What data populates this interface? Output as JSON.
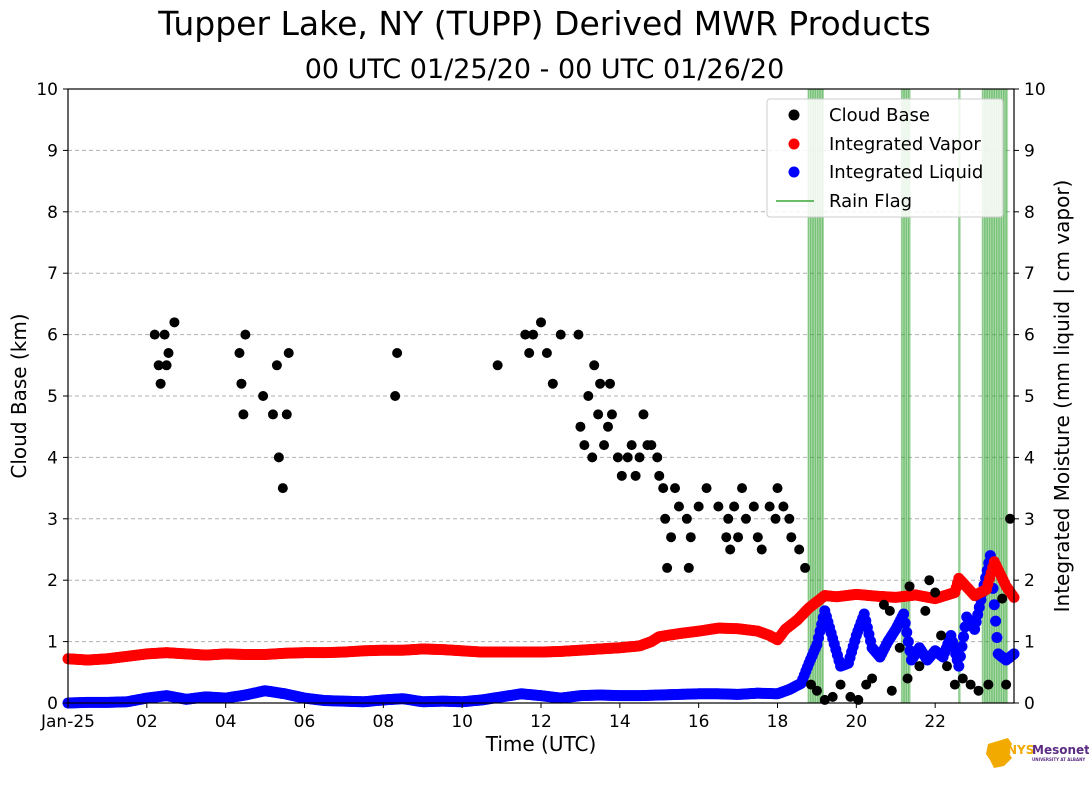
{
  "chart_data": {
    "type": "scatter",
    "title": "Tupper Lake, NY (TUPP) Derived MWR Products",
    "subtitle": "00 UTC 01/25/20 - 00 UTC 01/26/20",
    "xlabel": "Time (UTC)",
    "ylabel_left": "Cloud Base (km)",
    "ylabel_right": "Integrated Moisture (mm liquid | cm vapor)",
    "xlim": [
      0,
      24
    ],
    "ylim_left": [
      0,
      10
    ],
    "ylim_right": [
      0,
      10
    ],
    "x_ticks": [
      {
        "value": 0,
        "label": "Jan-25"
      },
      {
        "value": 2,
        "label": "02"
      },
      {
        "value": 4,
        "label": "04"
      },
      {
        "value": 6,
        "label": "06"
      },
      {
        "value": 8,
        "label": "08"
      },
      {
        "value": 10,
        "label": "10"
      },
      {
        "value": 12,
        "label": "12"
      },
      {
        "value": 14,
        "label": "14"
      },
      {
        "value": 16,
        "label": "16"
      },
      {
        "value": 18,
        "label": "18"
      },
      {
        "value": 20,
        "label": "20"
      },
      {
        "value": 22,
        "label": "22"
      }
    ],
    "y_ticks": [
      0,
      1,
      2,
      3,
      4,
      5,
      6,
      7,
      8,
      9,
      10
    ],
    "grid": "horizontal dashed",
    "legend_position": "top-right",
    "colors": {
      "cloud_base": "#000000",
      "integrated_vapor": "#ff0000",
      "integrated_liquid": "#0000ff",
      "rain_flag": "#2ca02c"
    },
    "series": [
      {
        "name": "Cloud Base",
        "color": "#000000",
        "points": [
          [
            2.2,
            6.0
          ],
          [
            2.3,
            5.5
          ],
          [
            2.35,
            5.2
          ],
          [
            2.45,
            6.0
          ],
          [
            2.5,
            5.5
          ],
          [
            2.55,
            5.7
          ],
          [
            2.7,
            6.2
          ],
          [
            4.35,
            5.7
          ],
          [
            4.4,
            5.2
          ],
          [
            4.45,
            4.7
          ],
          [
            4.5,
            6.0
          ],
          [
            4.95,
            5.0
          ],
          [
            5.2,
            4.7
          ],
          [
            5.3,
            5.5
          ],
          [
            5.35,
            4.0
          ],
          [
            5.45,
            3.5
          ],
          [
            5.55,
            4.7
          ],
          [
            5.6,
            5.7
          ],
          [
            8.3,
            5.0
          ],
          [
            8.35,
            5.7
          ],
          [
            10.9,
            5.5
          ],
          [
            11.6,
            6.0
          ],
          [
            11.7,
            5.7
          ],
          [
            11.8,
            6.0
          ],
          [
            12.0,
            6.2
          ],
          [
            12.15,
            5.7
          ],
          [
            12.3,
            5.2
          ],
          [
            12.5,
            6.0
          ],
          [
            12.95,
            6.0
          ],
          [
            13.0,
            4.5
          ],
          [
            13.1,
            4.2
          ],
          [
            13.2,
            5.0
          ],
          [
            13.3,
            4.0
          ],
          [
            13.35,
            5.5
          ],
          [
            13.45,
            4.7
          ],
          [
            13.5,
            5.2
          ],
          [
            13.6,
            4.2
          ],
          [
            13.7,
            4.5
          ],
          [
            13.75,
            5.2
          ],
          [
            13.8,
            4.7
          ],
          [
            13.95,
            4.0
          ],
          [
            14.05,
            3.7
          ],
          [
            14.2,
            4.0
          ],
          [
            14.3,
            4.2
          ],
          [
            14.4,
            3.7
          ],
          [
            14.5,
            4.0
          ],
          [
            14.6,
            4.7
          ],
          [
            14.7,
            4.2
          ],
          [
            14.8,
            4.2
          ],
          [
            14.95,
            4.0
          ],
          [
            15.0,
            3.7
          ],
          [
            15.1,
            3.5
          ],
          [
            15.15,
            3.0
          ],
          [
            15.2,
            2.2
          ],
          [
            15.3,
            2.7
          ],
          [
            15.4,
            3.5
          ],
          [
            15.5,
            3.2
          ],
          [
            15.7,
            3.0
          ],
          [
            15.75,
            2.2
          ],
          [
            15.8,
            2.7
          ],
          [
            16.0,
            3.2
          ],
          [
            16.2,
            3.5
          ],
          [
            16.5,
            3.2
          ],
          [
            16.7,
            2.7
          ],
          [
            16.75,
            3.0
          ],
          [
            16.8,
            2.5
          ],
          [
            16.9,
            3.2
          ],
          [
            17.0,
            2.7
          ],
          [
            17.1,
            3.5
          ],
          [
            17.2,
            3.0
          ],
          [
            17.4,
            3.2
          ],
          [
            17.5,
            2.7
          ],
          [
            17.6,
            2.5
          ],
          [
            17.8,
            3.2
          ],
          [
            17.95,
            3.0
          ],
          [
            18.0,
            3.5
          ],
          [
            18.15,
            3.2
          ],
          [
            18.3,
            3.0
          ],
          [
            18.35,
            2.7
          ],
          [
            18.55,
            2.5
          ],
          [
            18.7,
            2.2
          ],
          [
            18.85,
            0.3
          ],
          [
            19.0,
            0.2
          ],
          [
            19.2,
            0.05
          ],
          [
            19.4,
            0.1
          ],
          [
            19.6,
            0.3
          ],
          [
            19.85,
            0.1
          ],
          [
            20.05,
            0.05
          ],
          [
            20.25,
            0.3
          ],
          [
            20.4,
            0.4
          ],
          [
            20.7,
            1.6
          ],
          [
            20.85,
            1.5
          ],
          [
            20.9,
            0.2
          ],
          [
            21.1,
            0.9
          ],
          [
            21.3,
            0.4
          ],
          [
            21.35,
            1.9
          ],
          [
            21.6,
            0.6
          ],
          [
            21.75,
            1.5
          ],
          [
            21.85,
            2.0
          ],
          [
            22.0,
            1.8
          ],
          [
            22.15,
            1.1
          ],
          [
            22.3,
            0.6
          ],
          [
            22.5,
            0.3
          ],
          [
            22.7,
            0.4
          ],
          [
            22.9,
            0.3
          ],
          [
            23.1,
            0.2
          ],
          [
            23.35,
            0.3
          ],
          [
            23.7,
            1.7
          ],
          [
            23.8,
            0.3
          ],
          [
            23.9,
            3.0
          ]
        ]
      },
      {
        "name": "Integrated Vapor",
        "color": "#ff0000",
        "points": [
          [
            0.0,
            0.72
          ],
          [
            0.5,
            0.7
          ],
          [
            1.0,
            0.72
          ],
          [
            1.5,
            0.76
          ],
          [
            2.0,
            0.8
          ],
          [
            2.5,
            0.82
          ],
          [
            3.0,
            0.8
          ],
          [
            3.5,
            0.78
          ],
          [
            4.0,
            0.8
          ],
          [
            4.5,
            0.79
          ],
          [
            5.0,
            0.79
          ],
          [
            5.5,
            0.81
          ],
          [
            6.0,
            0.82
          ],
          [
            6.5,
            0.82
          ],
          [
            7.0,
            0.83
          ],
          [
            7.5,
            0.85
          ],
          [
            8.0,
            0.86
          ],
          [
            8.5,
            0.86
          ],
          [
            9.0,
            0.88
          ],
          [
            9.5,
            0.87
          ],
          [
            10.0,
            0.85
          ],
          [
            10.5,
            0.83
          ],
          [
            11.0,
            0.83
          ],
          [
            11.5,
            0.83
          ],
          [
            12.0,
            0.83
          ],
          [
            12.5,
            0.84
          ],
          [
            13.0,
            0.86
          ],
          [
            13.5,
            0.88
          ],
          [
            14.0,
            0.9
          ],
          [
            14.5,
            0.93
          ],
          [
            14.8,
            1.0
          ],
          [
            15.0,
            1.08
          ],
          [
            15.5,
            1.13
          ],
          [
            16.0,
            1.17
          ],
          [
            16.5,
            1.22
          ],
          [
            17.0,
            1.21
          ],
          [
            17.5,
            1.17
          ],
          [
            17.8,
            1.1
          ],
          [
            18.0,
            1.03
          ],
          [
            18.2,
            1.2
          ],
          [
            18.5,
            1.35
          ],
          [
            18.8,
            1.55
          ],
          [
            19.0,
            1.65
          ],
          [
            19.2,
            1.75
          ],
          [
            19.5,
            1.73
          ],
          [
            20.0,
            1.77
          ],
          [
            20.5,
            1.74
          ],
          [
            21.0,
            1.72
          ],
          [
            21.5,
            1.76
          ],
          [
            22.0,
            1.7
          ],
          [
            22.5,
            1.8
          ],
          [
            22.6,
            2.03
          ],
          [
            23.0,
            1.75
          ],
          [
            23.3,
            1.85
          ],
          [
            23.5,
            2.3
          ],
          [
            23.8,
            1.9
          ],
          [
            24.0,
            1.72
          ]
        ]
      },
      {
        "name": "Integrated Liquid",
        "color": "#0000ff",
        "points": [
          [
            0.0,
            0.0
          ],
          [
            0.5,
            0.01
          ],
          [
            1.0,
            0.01
          ],
          [
            1.5,
            0.02
          ],
          [
            2.0,
            0.08
          ],
          [
            2.5,
            0.12
          ],
          [
            3.0,
            0.06
          ],
          [
            3.5,
            0.1
          ],
          [
            4.0,
            0.08
          ],
          [
            4.5,
            0.13
          ],
          [
            5.0,
            0.2
          ],
          [
            5.5,
            0.15
          ],
          [
            6.0,
            0.08
          ],
          [
            6.5,
            0.04
          ],
          [
            7.0,
            0.03
          ],
          [
            7.5,
            0.02
          ],
          [
            8.0,
            0.05
          ],
          [
            8.5,
            0.07
          ],
          [
            9.0,
            0.02
          ],
          [
            9.5,
            0.03
          ],
          [
            10.0,
            0.02
          ],
          [
            10.5,
            0.05
          ],
          [
            11.0,
            0.1
          ],
          [
            11.5,
            0.15
          ],
          [
            12.0,
            0.12
          ],
          [
            12.5,
            0.08
          ],
          [
            13.0,
            0.12
          ],
          [
            13.5,
            0.13
          ],
          [
            14.0,
            0.12
          ],
          [
            14.5,
            0.12
          ],
          [
            15.0,
            0.13
          ],
          [
            15.5,
            0.14
          ],
          [
            16.0,
            0.15
          ],
          [
            16.5,
            0.15
          ],
          [
            17.0,
            0.14
          ],
          [
            17.5,
            0.16
          ],
          [
            18.0,
            0.15
          ],
          [
            18.3,
            0.22
          ],
          [
            18.6,
            0.32
          ],
          [
            18.8,
            0.65
          ],
          [
            19.0,
            0.95
          ],
          [
            19.2,
            1.5
          ],
          [
            19.4,
            1.05
          ],
          [
            19.6,
            0.6
          ],
          [
            19.8,
            0.65
          ],
          [
            20.0,
            1.1
          ],
          [
            20.2,
            1.45
          ],
          [
            20.4,
            0.9
          ],
          [
            20.6,
            0.75
          ],
          [
            20.8,
            1.0
          ],
          [
            21.0,
            1.2
          ],
          [
            21.2,
            1.45
          ],
          [
            21.4,
            0.7
          ],
          [
            21.6,
            0.9
          ],
          [
            21.8,
            0.7
          ],
          [
            22.0,
            0.85
          ],
          [
            22.2,
            0.75
          ],
          [
            22.4,
            1.1
          ],
          [
            22.6,
            0.6
          ],
          [
            22.8,
            1.4
          ],
          [
            23.0,
            1.2
          ],
          [
            23.2,
            1.8
          ],
          [
            23.4,
            2.4
          ],
          [
            23.5,
            1.6
          ],
          [
            23.6,
            0.8
          ],
          [
            23.8,
            0.7
          ],
          [
            24.0,
            0.8
          ]
        ]
      }
    ],
    "rain_flag": {
      "name": "Rain Flag",
      "color": "#2ca02c",
      "intervals": [
        [
          18.78,
          19.18
        ],
        [
          21.15,
          21.38
        ],
        [
          22.6,
          22.65
        ],
        [
          23.2,
          23.85
        ]
      ]
    }
  },
  "logo": {
    "label_nys": "NYS",
    "label_mesonet": "Mesonet",
    "label_small": "UNIVERSITY AT ALBANY"
  }
}
